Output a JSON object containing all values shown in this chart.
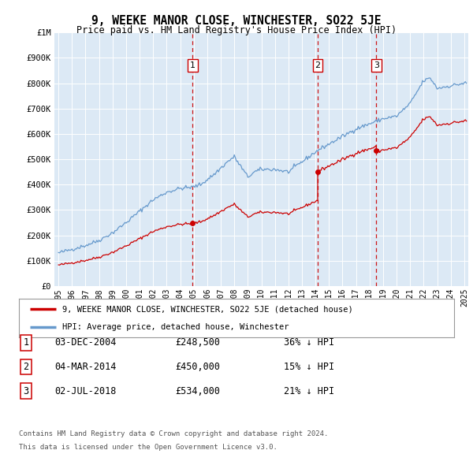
{
  "title": "9, WEEKE MANOR CLOSE, WINCHESTER, SO22 5JE",
  "subtitle": "Price paid vs. HM Land Registry's House Price Index (HPI)",
  "plot_bg_color": "#dce9f5",
  "ylim": [
    0,
    1000000
  ],
  "yticks": [
    0,
    100000,
    200000,
    300000,
    400000,
    500000,
    600000,
    700000,
    800000,
    900000,
    1000000
  ],
  "ytick_labels": [
    "£0",
    "£100K",
    "£200K",
    "£300K",
    "£400K",
    "£500K",
    "£600K",
    "£700K",
    "£800K",
    "£900K",
    "£1M"
  ],
  "xlim_start": 1994.7,
  "xlim_end": 2025.3,
  "sale_color": "#cc0000",
  "hpi_color": "#6699cc",
  "vline_color": "#cc0000",
  "transactions": [
    {
      "num": 1,
      "date_label": "03-DEC-2004",
      "price": 248500,
      "pct": "36%",
      "x_year": 2004.92
    },
    {
      "num": 2,
      "date_label": "04-MAR-2014",
      "price": 450000,
      "pct": "15%",
      "x_year": 2014.17
    },
    {
      "num": 3,
      "date_label": "02-JUL-2018",
      "price": 534000,
      "pct": "21%",
      "x_year": 2018.5
    }
  ],
  "legend_sale_label": "9, WEEKE MANOR CLOSE, WINCHESTER, SO22 5JE (detached house)",
  "legend_hpi_label": "HPI: Average price, detached house, Winchester",
  "footer1": "Contains HM Land Registry data © Crown copyright and database right 2024.",
  "footer2": "This data is licensed under the Open Government Licence v3.0."
}
